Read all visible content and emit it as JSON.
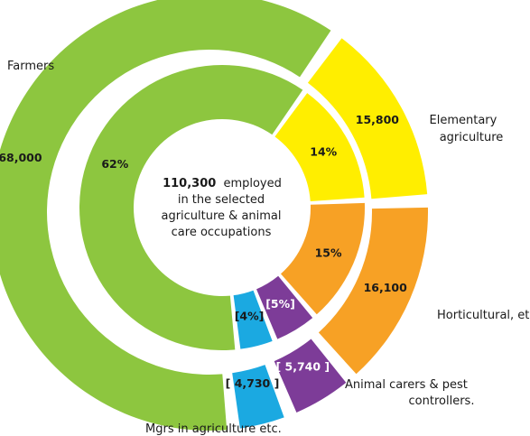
{
  "chart_data": {
    "type": "pie",
    "variant": "double-donut",
    "center": {
      "total": "110,300",
      "lines": [
        "employed",
        "in the selected",
        "agriculture & animal",
        "care occupations"
      ]
    },
    "categories": [
      "Farmers",
      "Elementary agriculture",
      "Horticultural, etc.*",
      "Animal carers & pest controllers.",
      "Mgrs in agriculture etc."
    ],
    "values": [
      68000,
      15800,
      16100,
      5740,
      4730
    ],
    "value_labels": [
      "68,000",
      "15,800",
      "16,100",
      "[ 5,740 ]",
      "[ 4,730 ]"
    ],
    "percent_labels": [
      "62%",
      "14%",
      "15%",
      "[5%]",
      "[4%]"
    ],
    "colors": [
      "#8dc63f",
      "#ffee00",
      "#f7a125",
      "#7d3c98",
      "#1ba9e1"
    ]
  }
}
